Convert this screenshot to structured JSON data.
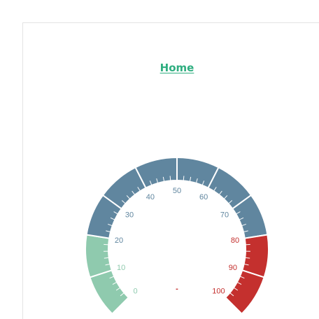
{
  "nav": {
    "home_label": "Home"
  },
  "gauge": {
    "min": 0,
    "max": 100,
    "value": 0,
    "value_text": "-",
    "tick_labels": [
      "0",
      "10",
      "20",
      "30",
      "40",
      "50",
      "60",
      "70",
      "80",
      "90",
      "100"
    ],
    "bands": [
      {
        "from": 0,
        "to": 20,
        "color": "#8fcaae",
        "label_color": "#8fcaae"
      },
      {
        "from": 20,
        "to": 80,
        "color": "#60869f",
        "label_color": "#60869f"
      },
      {
        "from": 80,
        "to": 100,
        "color": "#c4302e",
        "label_color": "#c4302e"
      }
    ],
    "value_color": "#c4302e",
    "major_step": 10,
    "minor_per_major": 5
  }
}
